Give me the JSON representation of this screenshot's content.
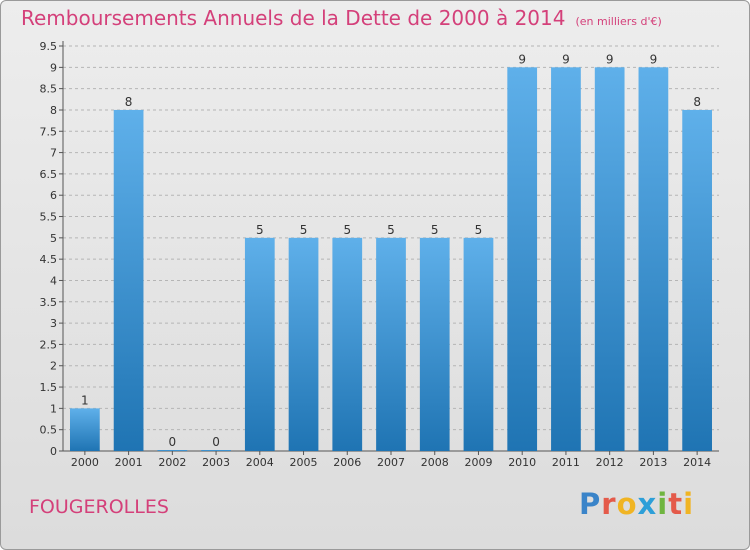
{
  "title": "Remboursements Annuels de la Dette de 2000 à 2014",
  "title_unit": "(en milliers d'€)",
  "town": "FOUGEROLLES",
  "logo_text": "Proxiti",
  "colors": {
    "bar_light": "#5fb0ea",
    "bar_dark": "#1f74b3",
    "title": "#d4407a"
  },
  "chart_data": {
    "type": "bar",
    "title": "Remboursements Annuels de la Dette de 2000 à 2014",
    "xlabel": "",
    "ylabel": "",
    "ylim": [
      0,
      9.5
    ],
    "yticks": [
      "0",
      "0.5",
      "1",
      "1.5",
      "2",
      "2.5",
      "3",
      "3.5",
      "4",
      "4.5",
      "5",
      "5.5",
      "6",
      "6.5",
      "7",
      "7.5",
      "8",
      "8.5",
      "9",
      "9.5"
    ],
    "categories": [
      "2000",
      "2001",
      "2002",
      "2003",
      "2004",
      "2005",
      "2006",
      "2007",
      "2008",
      "2009",
      "2010",
      "2011",
      "2012",
      "2013",
      "2014"
    ],
    "values": [
      1,
      8,
      0,
      0,
      5,
      5,
      5,
      5,
      5,
      5,
      9,
      9,
      9,
      9,
      8
    ],
    "labels": [
      "1",
      "8",
      "0",
      "0",
      "5",
      "5",
      "5",
      "5",
      "5",
      "5",
      "9",
      "9",
      "9",
      "9",
      "8"
    ],
    "grid": true
  }
}
